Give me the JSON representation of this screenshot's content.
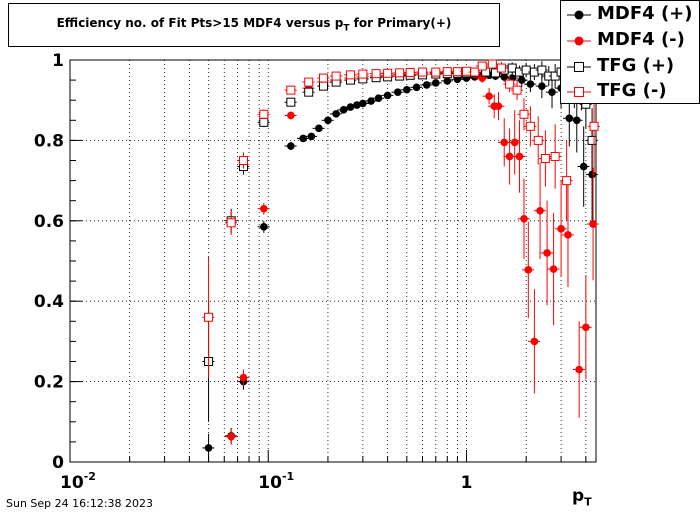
{
  "chart_data": {
    "type": "scatter",
    "title_main": "Efficiency no. of Fit Pts>15 MDF4 versus p",
    "title_sub": "T",
    "title_tail": " for Primary(+)",
    "xlabel_main": "p",
    "xlabel_sub": "T",
    "ylabel": "",
    "x_scale": "log",
    "xlim": [
      0.01,
      4.5
    ],
    "ylim": [
      0,
      1.0
    ],
    "grid": true,
    "legend_position": "top-right",
    "x_tick_labels": [
      {
        "base": "10",
        "exp": "-2",
        "value": 0.01
      },
      {
        "base": "10",
        "exp": "-1",
        "value": 0.1
      },
      {
        "base": "1",
        "exp": "",
        "value": 1
      }
    ],
    "y_ticks": [
      0,
      0.2,
      0.4,
      0.6,
      0.8,
      1
    ],
    "y_tick_labels": [
      "0",
      "0.2",
      "0.4",
      "0.6",
      "0.8",
      "1"
    ],
    "series": [
      {
        "name": "MDF4 (+)",
        "marker": "circle-filled",
        "color": "#000000",
        "points": [
          {
            "x": 0.05,
            "y": 0.035,
            "ey": 0.035
          },
          {
            "x": 0.065,
            "y": 0.065,
            "ey": 0.02
          },
          {
            "x": 0.075,
            "y": 0.2,
            "ey": 0.02
          },
          {
            "x": 0.095,
            "y": 0.585,
            "ey": 0.015
          },
          {
            "x": 0.13,
            "y": 0.786,
            "ey": 0.01
          },
          {
            "x": 0.15,
            "y": 0.805,
            "ey": 0.008
          },
          {
            "x": 0.165,
            "y": 0.81,
            "ey": 0.008
          },
          {
            "x": 0.18,
            "y": 0.83,
            "ey": 0.007
          },
          {
            "x": 0.2,
            "y": 0.85,
            "ey": 0.006
          },
          {
            "x": 0.22,
            "y": 0.866,
            "ey": 0.006
          },
          {
            "x": 0.24,
            "y": 0.876,
            "ey": 0.005
          },
          {
            "x": 0.26,
            "y": 0.883,
            "ey": 0.005
          },
          {
            "x": 0.28,
            "y": 0.888,
            "ey": 0.005
          },
          {
            "x": 0.3,
            "y": 0.892,
            "ey": 0.005
          },
          {
            "x": 0.33,
            "y": 0.898,
            "ey": 0.005
          },
          {
            "x": 0.36,
            "y": 0.905,
            "ey": 0.005
          },
          {
            "x": 0.4,
            "y": 0.912,
            "ey": 0.005
          },
          {
            "x": 0.45,
            "y": 0.92,
            "ey": 0.005
          },
          {
            "x": 0.5,
            "y": 0.926,
            "ey": 0.005
          },
          {
            "x": 0.56,
            "y": 0.932,
            "ey": 0.005
          },
          {
            "x": 0.63,
            "y": 0.938,
            "ey": 0.005
          },
          {
            "x": 0.7,
            "y": 0.943,
            "ey": 0.005
          },
          {
            "x": 0.8,
            "y": 0.948,
            "ey": 0.005
          },
          {
            "x": 0.9,
            "y": 0.952,
            "ey": 0.005
          },
          {
            "x": 1.0,
            "y": 0.955,
            "ey": 0.006
          },
          {
            "x": 1.1,
            "y": 0.958,
            "ey": 0.007
          },
          {
            "x": 1.2,
            "y": 0.96,
            "ey": 0.008
          },
          {
            "x": 1.3,
            "y": 0.962,
            "ey": 0.009
          },
          {
            "x": 1.4,
            "y": 0.96,
            "ey": 0.01
          },
          {
            "x": 1.55,
            "y": 0.958,
            "ey": 0.012
          },
          {
            "x": 1.7,
            "y": 0.955,
            "ey": 0.014
          },
          {
            "x": 1.9,
            "y": 0.95,
            "ey": 0.018
          },
          {
            "x": 2.1,
            "y": 0.94,
            "ey": 0.02
          },
          {
            "x": 2.4,
            "y": 0.935,
            "ey": 0.03
          },
          {
            "x": 2.7,
            "y": 0.92,
            "ey": 0.04
          },
          {
            "x": 3.0,
            "y": 0.93,
            "ey": 0.05
          },
          {
            "x": 3.3,
            "y": 0.855,
            "ey": 0.07
          },
          {
            "x": 3.6,
            "y": 0.85,
            "ey": 0.08
          },
          {
            "x": 3.9,
            "y": 0.735,
            "ey": 0.1
          },
          {
            "x": 4.3,
            "y": 0.715,
            "ey": 0.12
          }
        ]
      },
      {
        "name": "MDF4 (-)",
        "marker": "circle-filled",
        "color": "#ff0000",
        "points": [
          {
            "x": 0.065,
            "y": 0.063,
            "ey": 0.02
          },
          {
            "x": 0.075,
            "y": 0.21,
            "ey": 0.02
          },
          {
            "x": 0.095,
            "y": 0.63,
            "ey": 0.015
          },
          {
            "x": 0.13,
            "y": 0.862,
            "ey": 0.01
          },
          {
            "x": 0.16,
            "y": 0.93,
            "ey": 0.008
          },
          {
            "x": 0.19,
            "y": 0.945,
            "ey": 0.007
          },
          {
            "x": 0.22,
            "y": 0.95,
            "ey": 0.006
          },
          {
            "x": 0.26,
            "y": 0.955,
            "ey": 0.005
          },
          {
            "x": 0.3,
            "y": 0.958,
            "ey": 0.005
          },
          {
            "x": 0.35,
            "y": 0.96,
            "ey": 0.005
          },
          {
            "x": 0.4,
            "y": 0.962,
            "ey": 0.005
          },
          {
            "x": 0.46,
            "y": 0.964,
            "ey": 0.005
          },
          {
            "x": 0.52,
            "y": 0.965,
            "ey": 0.005
          },
          {
            "x": 0.6,
            "y": 0.967,
            "ey": 0.005
          },
          {
            "x": 0.7,
            "y": 0.968,
            "ey": 0.006
          },
          {
            "x": 0.8,
            "y": 0.969,
            "ey": 0.006
          },
          {
            "x": 0.9,
            "y": 0.97,
            "ey": 0.007
          },
          {
            "x": 1.0,
            "y": 0.968,
            "ey": 0.008
          },
          {
            "x": 1.1,
            "y": 0.965,
            "ey": 0.009
          },
          {
            "x": 1.2,
            "y": 0.955,
            "ey": 0.012
          },
          {
            "x": 1.3,
            "y": 0.91,
            "ey": 0.02
          },
          {
            "x": 1.38,
            "y": 0.885,
            "ey": 0.03
          },
          {
            "x": 1.45,
            "y": 0.885,
            "ey": 0.035
          },
          {
            "x": 1.55,
            "y": 0.795,
            "ey": 0.06
          },
          {
            "x": 1.65,
            "y": 0.76,
            "ey": 0.07
          },
          {
            "x": 1.75,
            "y": 0.795,
            "ey": 0.08
          },
          {
            "x": 1.85,
            "y": 0.76,
            "ey": 0.09
          },
          {
            "x": 1.95,
            "y": 0.605,
            "ey": 0.1
          },
          {
            "x": 2.05,
            "y": 0.478,
            "ey": 0.12
          },
          {
            "x": 2.2,
            "y": 0.3,
            "ey": 0.13
          },
          {
            "x": 2.35,
            "y": 0.625,
            "ey": 0.12
          },
          {
            "x": 2.55,
            "y": 0.52,
            "ey": 0.13
          },
          {
            "x": 2.75,
            "y": 0.48,
            "ey": 0.14
          },
          {
            "x": 3.0,
            "y": 0.58,
            "ey": 0.12
          },
          {
            "x": 3.25,
            "y": 0.565,
            "ey": 0.13
          },
          {
            "x": 3.7,
            "y": 0.23,
            "ey": 0.12
          },
          {
            "x": 4.0,
            "y": 0.335,
            "ey": 0.13
          },
          {
            "x": 4.35,
            "y": 0.592,
            "ey": 0.14
          }
        ]
      },
      {
        "name": "TFG (+)",
        "marker": "square-open",
        "color": "#000000",
        "points": [
          {
            "x": 0.05,
            "y": 0.25,
            "ey": 0.15
          },
          {
            "x": 0.065,
            "y": 0.6,
            "ey": 0.03
          },
          {
            "x": 0.075,
            "y": 0.735,
            "ey": 0.02
          },
          {
            "x": 0.095,
            "y": 0.845,
            "ey": 0.012
          },
          {
            "x": 0.13,
            "y": 0.895,
            "ey": 0.008
          },
          {
            "x": 0.16,
            "y": 0.92,
            "ey": 0.007
          },
          {
            "x": 0.19,
            "y": 0.935,
            "ey": 0.006
          },
          {
            "x": 0.22,
            "y": 0.945,
            "ey": 0.005
          },
          {
            "x": 0.26,
            "y": 0.95,
            "ey": 0.005
          },
          {
            "x": 0.3,
            "y": 0.953,
            "ey": 0.005
          },
          {
            "x": 0.35,
            "y": 0.956,
            "ey": 0.005
          },
          {
            "x": 0.4,
            "y": 0.958,
            "ey": 0.005
          },
          {
            "x": 0.46,
            "y": 0.96,
            "ey": 0.005
          },
          {
            "x": 0.52,
            "y": 0.962,
            "ey": 0.005
          },
          {
            "x": 0.6,
            "y": 0.963,
            "ey": 0.005
          },
          {
            "x": 0.7,
            "y": 0.965,
            "ey": 0.005
          },
          {
            "x": 0.8,
            "y": 0.966,
            "ey": 0.006
          },
          {
            "x": 0.9,
            "y": 0.967,
            "ey": 0.006
          },
          {
            "x": 1.0,
            "y": 0.968,
            "ey": 0.007
          },
          {
            "x": 1.1,
            "y": 0.969,
            "ey": 0.008
          },
          {
            "x": 1.25,
            "y": 0.97,
            "ey": 0.009
          },
          {
            "x": 1.4,
            "y": 0.968,
            "ey": 0.01
          },
          {
            "x": 1.55,
            "y": 0.975,
            "ey": 0.012
          },
          {
            "x": 1.7,
            "y": 0.98,
            "ey": 0.014
          },
          {
            "x": 1.85,
            "y": 0.97,
            "ey": 0.016
          },
          {
            "x": 2.0,
            "y": 0.975,
            "ey": 0.018
          },
          {
            "x": 2.2,
            "y": 0.97,
            "ey": 0.02
          },
          {
            "x": 2.4,
            "y": 0.975,
            "ey": 0.022
          },
          {
            "x": 2.6,
            "y": 0.96,
            "ey": 0.025
          },
          {
            "x": 2.8,
            "y": 0.96,
            "ey": 0.03
          },
          {
            "x": 3.0,
            "y": 0.97,
            "ey": 0.03
          },
          {
            "x": 3.25,
            "y": 0.965,
            "ey": 0.035
          },
          {
            "x": 3.5,
            "y": 0.93,
            "ey": 0.05
          },
          {
            "x": 3.8,
            "y": 0.925,
            "ey": 0.05
          },
          {
            "x": 4.0,
            "y": 0.89,
            "ey": 0.06
          },
          {
            "x": 4.3,
            "y": 0.8,
            "ey": 0.08
          }
        ]
      },
      {
        "name": "TFG (-)",
        "marker": "square-open",
        "color": "#ff0000",
        "points": [
          {
            "x": 0.05,
            "y": 0.36,
            "ey": 0.15
          },
          {
            "x": 0.065,
            "y": 0.595,
            "ey": 0.03
          },
          {
            "x": 0.075,
            "y": 0.75,
            "ey": 0.02
          },
          {
            "x": 0.095,
            "y": 0.865,
            "ey": 0.012
          },
          {
            "x": 0.13,
            "y": 0.925,
            "ey": 0.008
          },
          {
            "x": 0.16,
            "y": 0.945,
            "ey": 0.007
          },
          {
            "x": 0.19,
            "y": 0.955,
            "ey": 0.006
          },
          {
            "x": 0.22,
            "y": 0.96,
            "ey": 0.005
          },
          {
            "x": 0.26,
            "y": 0.963,
            "ey": 0.005
          },
          {
            "x": 0.3,
            "y": 0.965,
            "ey": 0.005
          },
          {
            "x": 0.35,
            "y": 0.966,
            "ey": 0.005
          },
          {
            "x": 0.4,
            "y": 0.967,
            "ey": 0.005
          },
          {
            "x": 0.46,
            "y": 0.968,
            "ey": 0.005
          },
          {
            "x": 0.52,
            "y": 0.969,
            "ey": 0.005
          },
          {
            "x": 0.6,
            "y": 0.97,
            "ey": 0.005
          },
          {
            "x": 0.7,
            "y": 0.97,
            "ey": 0.006
          },
          {
            "x": 0.8,
            "y": 0.971,
            "ey": 0.006
          },
          {
            "x": 0.9,
            "y": 0.971,
            "ey": 0.007
          },
          {
            "x": 1.0,
            "y": 0.972,
            "ey": 0.008
          },
          {
            "x": 1.1,
            "y": 0.97,
            "ey": 0.009
          },
          {
            "x": 1.2,
            "y": 0.985,
            "ey": 0.01
          },
          {
            "x": 1.35,
            "y": 0.99,
            "ey": 0.012
          },
          {
            "x": 1.5,
            "y": 0.98,
            "ey": 0.015
          },
          {
            "x": 1.65,
            "y": 0.94,
            "ey": 0.02
          },
          {
            "x": 1.8,
            "y": 0.925,
            "ey": 0.025
          },
          {
            "x": 1.95,
            "y": 0.865,
            "ey": 0.04
          },
          {
            "x": 2.1,
            "y": 0.835,
            "ey": 0.05
          },
          {
            "x": 2.3,
            "y": 0.8,
            "ey": 0.06
          },
          {
            "x": 2.5,
            "y": 0.755,
            "ey": 0.07
          },
          {
            "x": 2.8,
            "y": 0.76,
            "ey": 0.08
          },
          {
            "x": 3.2,
            "y": 0.7,
            "ey": 0.1
          },
          {
            "x": 4.4,
            "y": 0.835,
            "ey": 0.12
          }
        ]
      }
    ]
  },
  "footer": {
    "timestamp": "Sun Sep 24 16:12:38 2023"
  }
}
